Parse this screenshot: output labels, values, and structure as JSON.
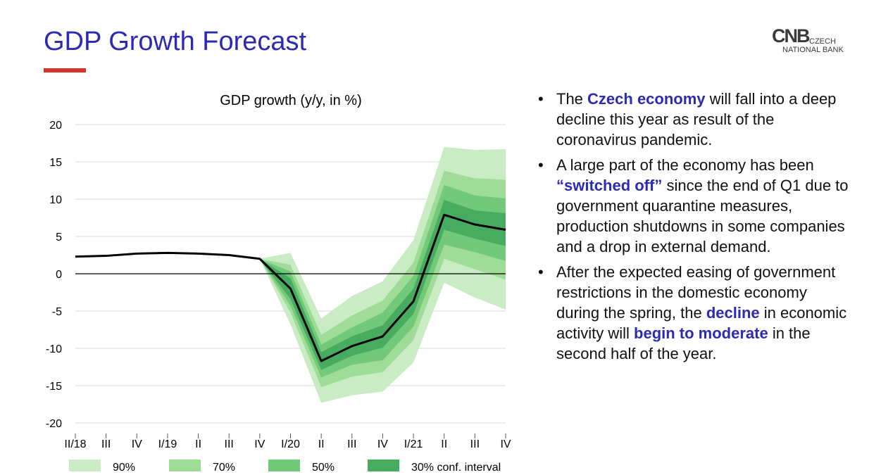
{
  "slide": {
    "title": "GDP Growth Forecast",
    "accent_color": "#d8332a",
    "title_color": "#2b2bb3"
  },
  "logo": {
    "mark": "CNB",
    "line1": "CZECH",
    "line2": "NATIONAL BANK"
  },
  "bullets": [
    {
      "parts": [
        {
          "t": "The ",
          "hl": false
        },
        {
          "t": "Czech economy",
          "hl": true
        },
        {
          "t": " will fall into a deep decline this year as result of the coronavirus pandemic.",
          "hl": false
        }
      ]
    },
    {
      "parts": [
        {
          "t": "A large part of the economy has been ",
          "hl": false
        },
        {
          "t": "“switched off”",
          "hl": true
        },
        {
          "t": " since the end of Q1 due to government quarantine measures, production shutdowns in some companies and a drop in external demand.",
          "hl": false
        }
      ]
    },
    {
      "parts": [
        {
          "t": " After the expected easing of government restrictions in the domestic economy during the spring, the ",
          "hl": false
        },
        {
          "t": "decline",
          "hl": true
        },
        {
          "t": " in economic activity will ",
          "hl": false
        },
        {
          "t": "begin to moderate",
          "hl": true
        },
        {
          "t": " in the second half of the year.",
          "hl": false
        }
      ]
    }
  ],
  "chart_data": {
    "type": "line",
    "title": "GDP growth (y/y, in %)",
    "xlabel": "",
    "ylabel": "",
    "ylim": [
      -20,
      20
    ],
    "yticks": [
      20,
      15,
      10,
      5,
      0,
      -5,
      -10,
      -15,
      -20
    ],
    "categories": [
      "II/18",
      "III",
      "IV",
      "I/19",
      "II",
      "III",
      "IV",
      "I/20",
      "II",
      "III",
      "IV",
      "I/21",
      "II",
      "III",
      "IV"
    ],
    "grid": true,
    "legend_position": "bottom",
    "series": [
      {
        "values": [
          2.3,
          2.4,
          2.7,
          2.8,
          2.7,
          2.5,
          2.0,
          -2.0,
          -11.7,
          -9.7,
          -8.4,
          -3.7,
          7.9,
          6.6,
          5.9
        ],
        "color": "#000000"
      }
    ],
    "fan_start_index": 6,
    "bands": [
      {
        "name": "90%",
        "color": "#c9ecc4",
        "upper": [
          2.0,
          2.8,
          -6.0,
          -3.0,
          -1.0,
          4.5,
          17.0,
          16.6,
          16.7
        ],
        "lower": [
          2.0,
          -6.8,
          -17.3,
          -16.3,
          -15.8,
          -11.9,
          -1.2,
          -3.2,
          -4.8
        ]
      },
      {
        "name": "70%",
        "color": "#9fdc98",
        "upper": [
          2.0,
          1.2,
          -8.2,
          -5.6,
          -3.6,
          1.5,
          13.8,
          12.8,
          12.6
        ],
        "lower": [
          2.0,
          -5.2,
          -15.2,
          -13.8,
          -13.2,
          -8.9,
          2.0,
          0.6,
          -0.8
        ]
      },
      {
        "name": "50%",
        "color": "#72c979",
        "upper": [
          2.0,
          0.3,
          -9.5,
          -7.2,
          -5.2,
          -0.3,
          11.9,
          10.5,
          10.1
        ],
        "lower": [
          2.0,
          -4.3,
          -13.9,
          -12.2,
          -11.6,
          -7.1,
          3.9,
          2.9,
          1.7
        ]
      },
      {
        "name": "30% conf. interval",
        "color": "#47ac60",
        "upper": [
          2.0,
          -0.6,
          -10.5,
          -8.4,
          -6.9,
          -2.0,
          9.9,
          8.5,
          8.1
        ],
        "lower": [
          2.0,
          -3.4,
          -12.9,
          -11.0,
          -9.9,
          -5.4,
          5.9,
          4.7,
          3.7
        ]
      }
    ]
  }
}
